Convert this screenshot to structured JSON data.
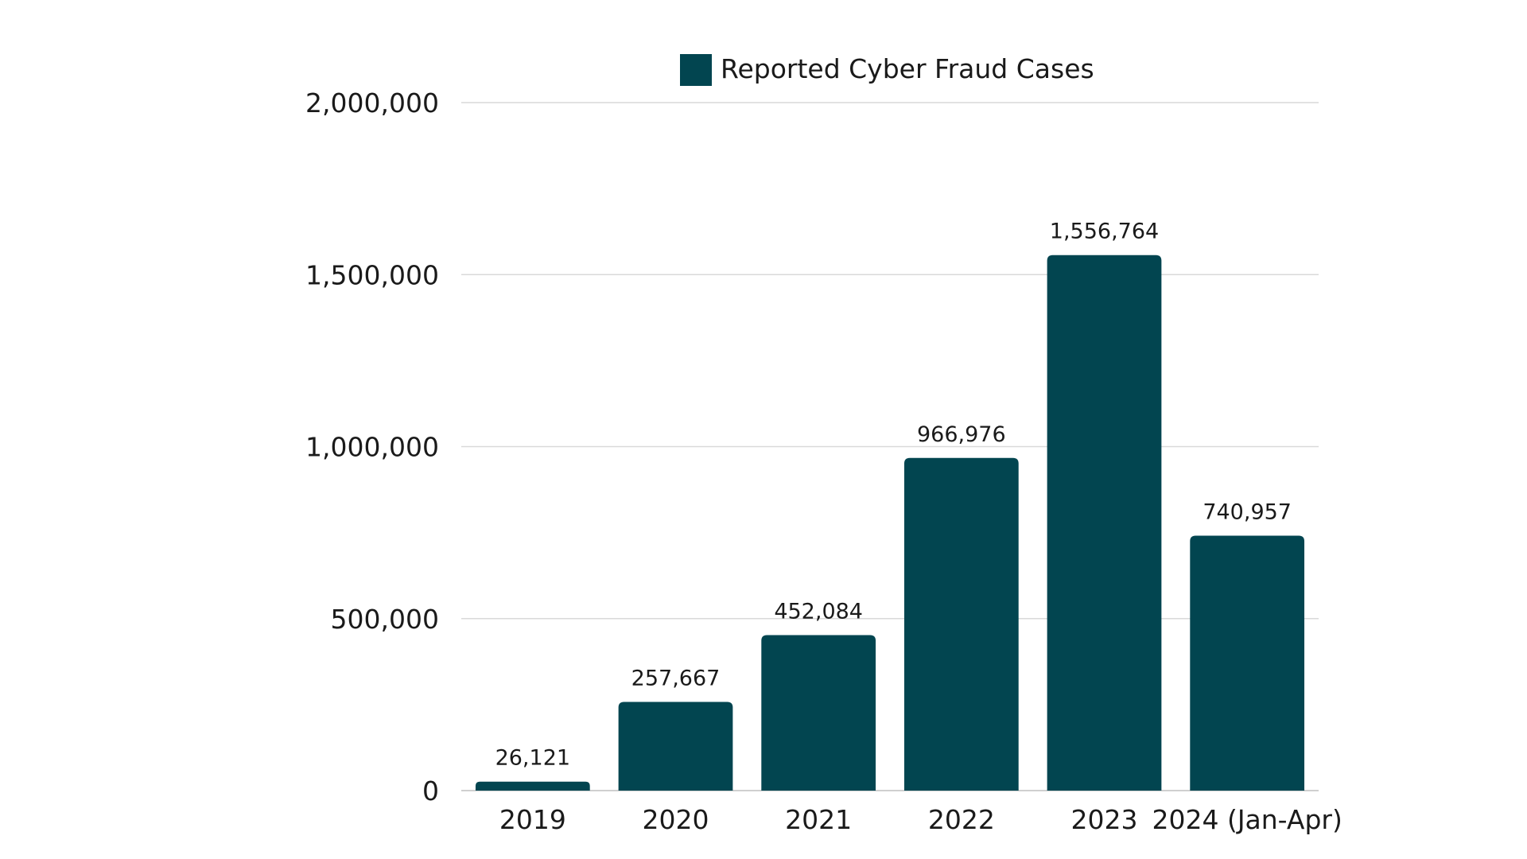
{
  "chart_data": {
    "type": "bar",
    "categories": [
      "2019",
      "2020",
      "2021",
      "2022",
      "2023",
      "2024 (Jan-Apr)"
    ],
    "series": [
      {
        "name": "Reported Cyber Fraud Cases",
        "values": [
          26121,
          257667,
          452084,
          966976,
          1556764,
          740957
        ],
        "data_labels": [
          "26,121",
          "257,667",
          "452,084",
          "966,976",
          "1,556,764",
          "740,957"
        ],
        "color": "#024550"
      }
    ],
    "y_ticks": [
      {
        "value": 0,
        "label": "0"
      },
      {
        "value": 500000,
        "label": "500,000"
      },
      {
        "value": 1000000,
        "label": "1,000,000"
      },
      {
        "value": 1500000,
        "label": "1,500,000"
      },
      {
        "value": 2000000,
        "label": "2,000,000"
      }
    ],
    "ylim": [
      0,
      2000000
    ],
    "title": "",
    "xlabel": "",
    "ylabel": "",
    "grid": true,
    "legend_position": "top-center"
  }
}
